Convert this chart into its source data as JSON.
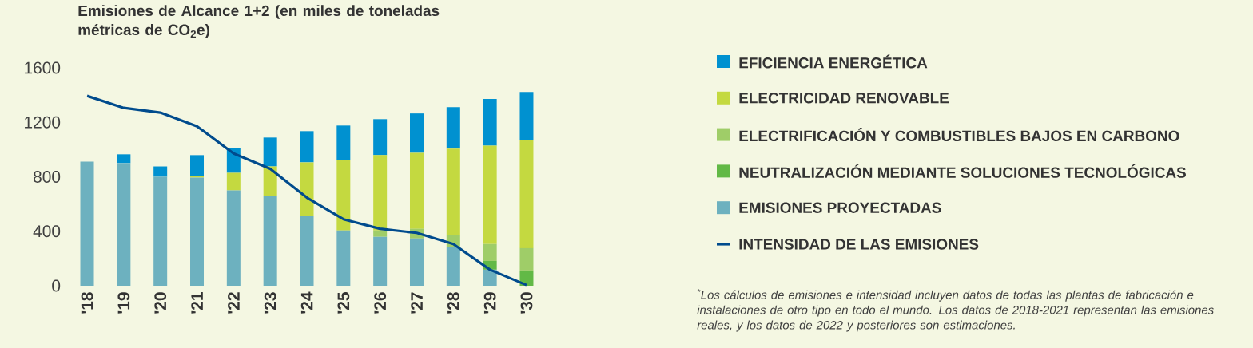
{
  "chart_data": {
    "type": "bar",
    "stacked": true,
    "title": "Emisiones de Alcance 1+2 (en miles de toneladas métricas de CO$_{2}$e)",
    "categories": [
      "'18",
      "'19",
      "'20",
      "'21",
      "'22",
      "'23",
      "'24",
      "'25",
      "'26",
      "'27",
      "'28",
      "'29",
      "'30"
    ],
    "series": [
      {
        "name": "EMISIONES PROYECTADAS",
        "color": "#6db1bf",
        "values": [
          912,
          900,
          800,
          794,
          700,
          659,
          512,
          406,
          359,
          347,
          282,
          118,
          0
        ]
      },
      {
        "name": "NEUTRALIZACIÓN MEDIANTE SOLUCIONES TECNOLÓGICAS",
        "color": "#62b946",
        "values": [
          0,
          0,
          0,
          0,
          0,
          0,
          0,
          0,
          0,
          0,
          0,
          64,
          112
        ]
      },
      {
        "name": "ELECTRIFICACIÓN Y COMBUSTIBLES BAJOS EN CARBONO",
        "color": "#9fcd68",
        "values": [
          0,
          0,
          0,
          0,
          0,
          0,
          0,
          0,
          47,
          71,
          89,
          124,
          164
        ]
      },
      {
        "name": "ELECTRICIDAD RENOVABLE",
        "color": "#c4d940",
        "values": [
          0,
          0,
          0,
          12,
          129,
          217,
          394,
          517,
          553,
          558,
          635,
          723,
          795
        ]
      },
      {
        "name": "EFICIENCIA ENERGÉTICA",
        "color": "#0091d0",
        "values": [
          0,
          65,
          76,
          153,
          183,
          212,
          229,
          253,
          264,
          289,
          306,
          342,
          352
        ]
      },
      {
        "name": "INTENSIDAD DE LAS EMISIONES",
        "type": "line",
        "color": "#004b8d",
        "values": [
          1394,
          1306,
          1271,
          1171,
          971,
          859,
          647,
          488,
          418,
          388,
          306,
          118,
          5
        ]
      }
    ],
    "ylim": [
      0,
      1600
    ],
    "yticks": [
      0,
      400,
      800,
      1200,
      1600
    ],
    "legend": "right",
    "annotations": [
      "$^{*}$Los cálculos de emisiones e intensidad incluyen datos de todas las plantas de fabricación e instalaciones de otro tipo en todo el mundo. Los datos de 2018-2021 representan las emisiones reales, y los datos de 2022 y posteriores son estimaciones."
    ]
  }
}
